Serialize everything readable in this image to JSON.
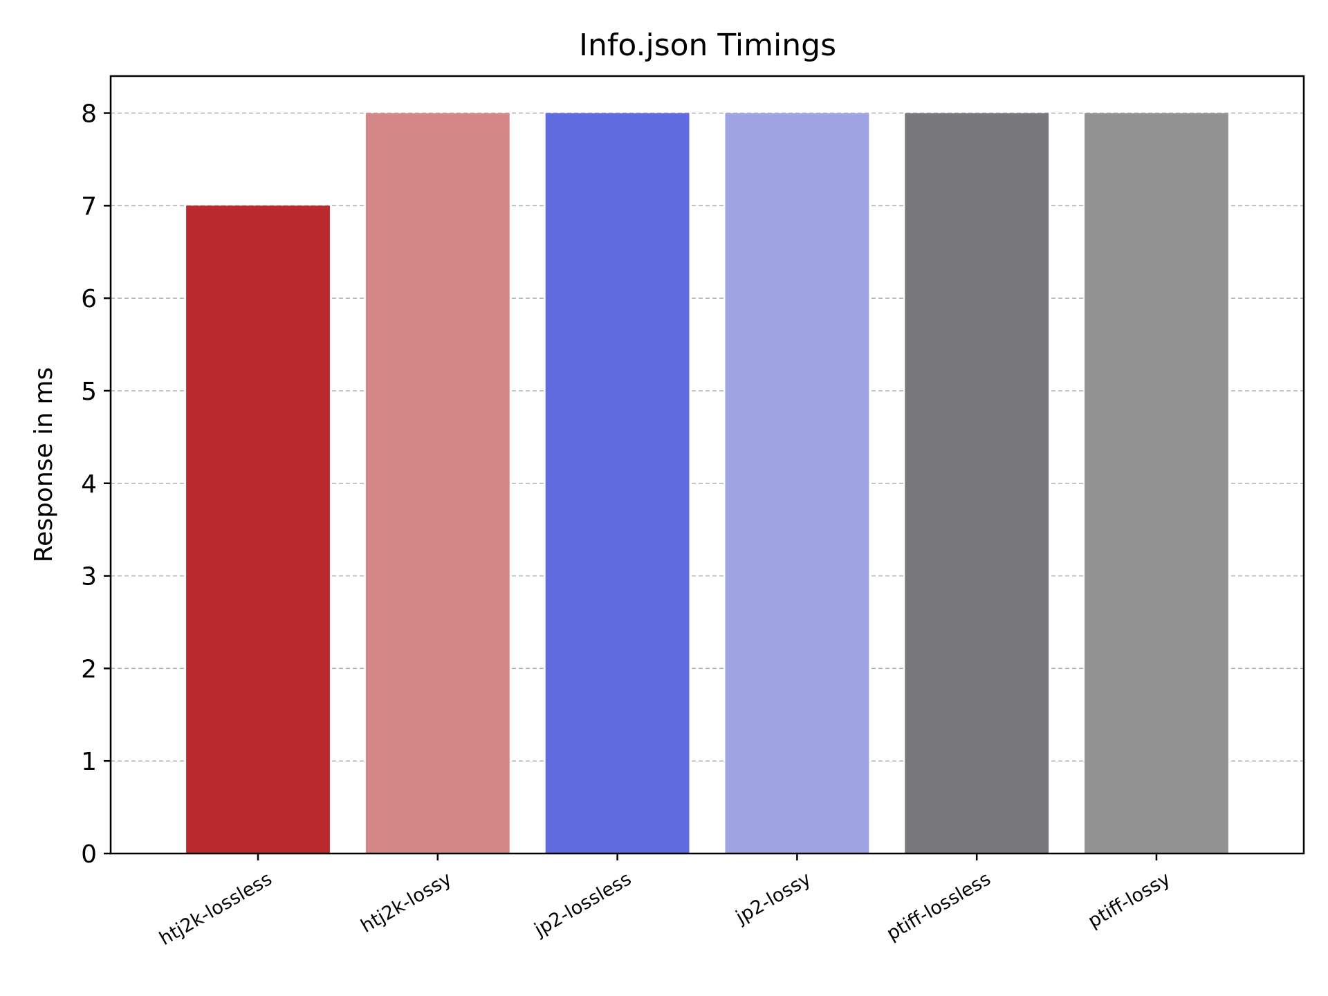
{
  "chart_data": {
    "type": "bar",
    "title": "Info.json Timings",
    "xlabel": "",
    "ylabel": "Response in ms",
    "categories": [
      "htj2k-lossless",
      "htj2k-lossy",
      "jp2-lossless",
      "jp2-lossy",
      "ptiff-lossless",
      "ptiff-lossy"
    ],
    "values": [
      7,
      8,
      8,
      8,
      8,
      8
    ],
    "colors": [
      "#bb2a2c",
      "#d38786",
      "#5f6bde",
      "#9da4e1",
      "#78777c",
      "#929293"
    ],
    "ylim": [
      0,
      8.4
    ],
    "yticks": [
      "0",
      "1",
      "2",
      "3",
      "4",
      "5",
      "6",
      "7",
      "8"
    ],
    "grid": true,
    "grid_axis": "y",
    "grid_style": "dashed",
    "legend": "none"
  }
}
